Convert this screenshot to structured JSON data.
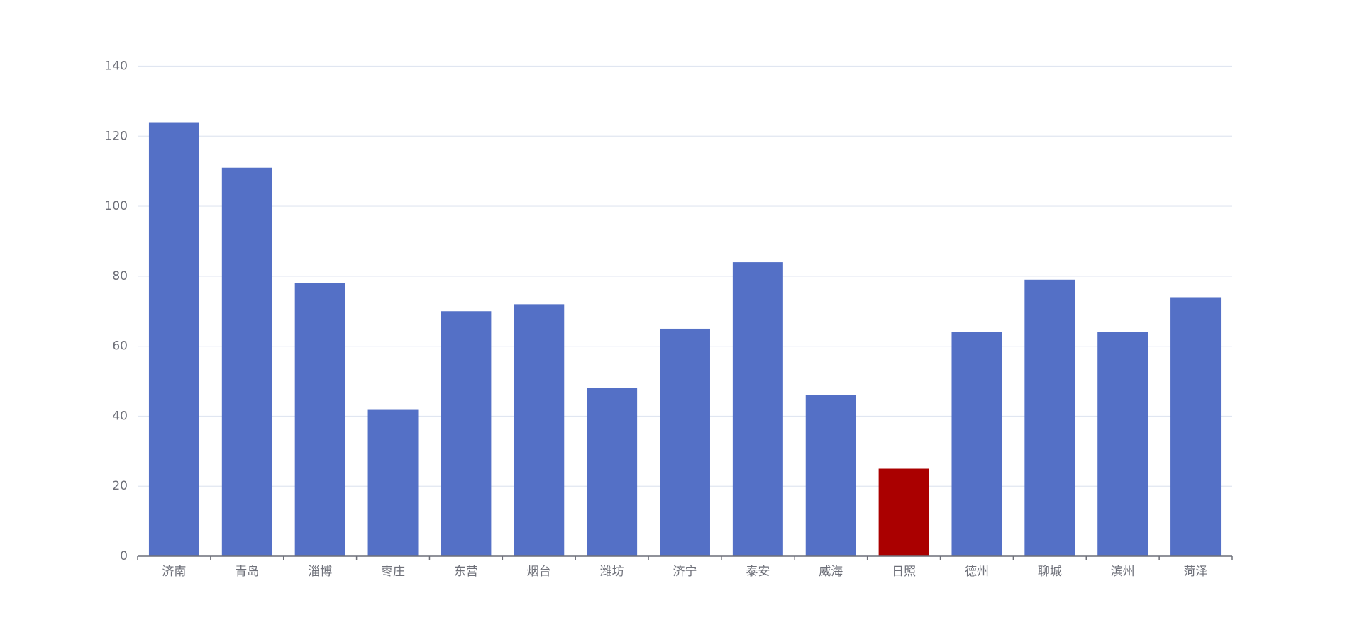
{
  "chart_data": {
    "type": "bar",
    "categories": [
      "济南",
      "青岛",
      "淄博",
      "枣庄",
      "东营",
      "烟台",
      "潍坊",
      "济宁",
      "泰安",
      "威海",
      "日照",
      "德州",
      "聊城",
      "滨州",
      "菏泽"
    ],
    "values": [
      124,
      111,
      78,
      42,
      70,
      72,
      48,
      65,
      84,
      46,
      25,
      64,
      79,
      64,
      74
    ],
    "colors": [
      "#5470c6",
      "#5470c6",
      "#5470c6",
      "#5470c6",
      "#5470c6",
      "#5470c6",
      "#5470c6",
      "#5470c6",
      "#5470c6",
      "#5470c6",
      "#aa0000",
      "#5470c6",
      "#5470c6",
      "#5470c6",
      "#5470c6"
    ],
    "ylim": [
      0,
      140
    ],
    "yticks": [
      0,
      20,
      40,
      60,
      80,
      100,
      120,
      140
    ],
    "grid": true
  }
}
